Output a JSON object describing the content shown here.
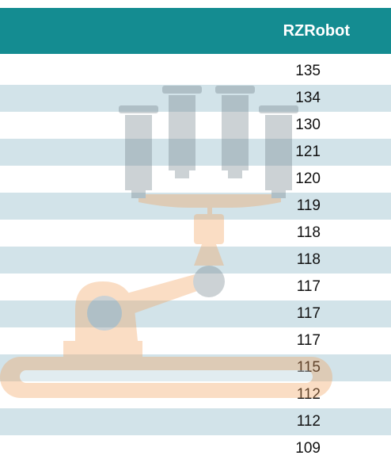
{
  "table": {
    "header": "RZRobot",
    "rows": [
      135,
      134,
      130,
      121,
      120,
      119,
      118,
      118,
      117,
      117,
      117,
      115,
      112,
      112,
      109
    ]
  }
}
